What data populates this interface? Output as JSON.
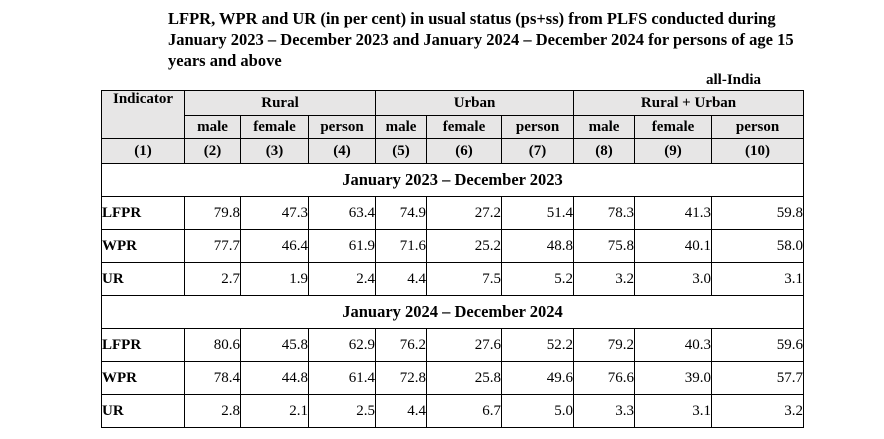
{
  "title": "LFPR, WPR and UR (in per cent) in usual status (ps+ss) from PLFS conducted during January 2023 – December 2023 and January 2024 – December 2024 for persons of age 15 years and above",
  "region_label": "all-India",
  "table": {
    "indicator_header": "Indicator",
    "groups": [
      "Rural",
      "Urban",
      "Rural + Urban"
    ],
    "subheaders": [
      "male",
      "female",
      "person",
      "male",
      "female",
      "person",
      "male",
      "female",
      "person"
    ],
    "column_numbers": [
      "(1)",
      "(2)",
      "(3)",
      "(4)",
      "(5)",
      "(6)",
      "(7)",
      "(8)",
      "(9)",
      "(10)"
    ],
    "sections": [
      {
        "label": "January 2023 – December 2023",
        "rows": [
          {
            "indicator": "LFPR",
            "values": [
              "79.8",
              "47.3",
              "63.4",
              "74.9",
              "27.2",
              "51.4",
              "78.3",
              "41.3",
              "59.8"
            ]
          },
          {
            "indicator": "WPR",
            "values": [
              "77.7",
              "46.4",
              "61.9",
              "71.6",
              "25.2",
              "48.8",
              "75.8",
              "40.1",
              "58.0"
            ]
          },
          {
            "indicator": "UR",
            "values": [
              "2.7",
              "1.9",
              "2.4",
              "4.4",
              "7.5",
              "5.2",
              "3.2",
              "3.0",
              "3.1"
            ]
          }
        ]
      },
      {
        "label": "January 2024 – December 2024",
        "rows": [
          {
            "indicator": "LFPR",
            "values": [
              "80.6",
              "45.8",
              "62.9",
              "76.2",
              "27.6",
              "52.2",
              "79.2",
              "40.3",
              "59.6"
            ]
          },
          {
            "indicator": "WPR",
            "values": [
              "78.4",
              "44.8",
              "61.4",
              "72.8",
              "25.8",
              "49.6",
              "76.6",
              "39.0",
              "57.7"
            ]
          },
          {
            "indicator": "UR",
            "values": [
              "2.8",
              "2.1",
              "2.5",
              "4.4",
              "6.7",
              "5.0",
              "3.3",
              "3.1",
              "3.2"
            ]
          }
        ]
      }
    ]
  }
}
